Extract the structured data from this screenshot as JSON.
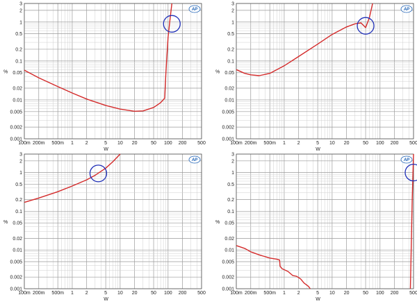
{
  "logo": {
    "text": "AP",
    "color": "#1a5fb4"
  },
  "style": {
    "line_color": "#d42a2a",
    "circle_color": "#1f2fb8",
    "grid_major": "#9a9a9a",
    "grid_minor": "#cfcfcf"
  },
  "chart_data": [
    {
      "type": "line",
      "scale": "log-log",
      "xlabel": "W",
      "ylabel": "%",
      "xlim": [
        0.1,
        500
      ],
      "ylim": [
        0.001,
        3
      ],
      "xticks": [
        {
          "v": 0.1,
          "label": "100m"
        },
        {
          "v": 0.2,
          "label": "200m"
        },
        {
          "v": 0.5,
          "label": "500m"
        },
        {
          "v": 1,
          "label": "1"
        },
        {
          "v": 2,
          "label": "2"
        },
        {
          "v": 5,
          "label": "5"
        },
        {
          "v": 10,
          "label": "10"
        },
        {
          "v": 20,
          "label": "20"
        },
        {
          "v": 50,
          "label": "50"
        },
        {
          "v": 100,
          "label": "100"
        },
        {
          "v": 200,
          "label": "200"
        },
        {
          "v": 500,
          "label": "500"
        }
      ],
      "yticks": [
        {
          "v": 0.001,
          "label": "0.001"
        },
        {
          "v": 0.002,
          "label": "0.002"
        },
        {
          "v": 0.005,
          "label": "0.005"
        },
        {
          "v": 0.01,
          "label": "0.01"
        },
        {
          "v": 0.02,
          "label": "0.02"
        },
        {
          "v": 0.05,
          "label": "0.05"
        },
        {
          "v": 0.1,
          "label": "0.1"
        },
        {
          "v": 0.2,
          "label": "0.2"
        },
        {
          "v": 0.5,
          "label": "0.5"
        },
        {
          "v": 1,
          "label": "1"
        },
        {
          "v": 2,
          "label": "2"
        },
        {
          "v": 3,
          "label": "3"
        }
      ],
      "series": [
        {
          "points": [
            [
              0.1,
              0.058
            ],
            [
              0.2,
              0.037
            ],
            [
              0.5,
              0.022
            ],
            [
              1,
              0.015
            ],
            [
              2,
              0.0105
            ],
            [
              5,
              0.0072
            ],
            [
              10,
              0.0058
            ],
            [
              20,
              0.0051
            ],
            [
              30,
              0.0052
            ],
            [
              50,
              0.0064
            ],
            [
              70,
              0.0085
            ],
            [
              85,
              0.011
            ],
            [
              90,
              0.05
            ],
            [
              100,
              0.4
            ],
            [
              110,
              1.2
            ],
            [
              120,
              3
            ]
          ]
        }
      ],
      "circle": {
        "x": 120,
        "y": 0.9
      }
    },
    {
      "type": "line",
      "scale": "log-log",
      "xlabel": "W",
      "ylabel": "%",
      "xlim": [
        0.1,
        500
      ],
      "ylim": [
        0.001,
        3
      ],
      "xticks": [
        {
          "v": 0.1,
          "label": "100m"
        },
        {
          "v": 0.2,
          "label": "200m"
        },
        {
          "v": 0.5,
          "label": "500m"
        },
        {
          "v": 1,
          "label": "1"
        },
        {
          "v": 2,
          "label": "2"
        },
        {
          "v": 5,
          "label": "5"
        },
        {
          "v": 10,
          "label": "10"
        },
        {
          "v": 20,
          "label": "20"
        },
        {
          "v": 50,
          "label": "50"
        },
        {
          "v": 100,
          "label": "100"
        },
        {
          "v": 200,
          "label": "200"
        },
        {
          "v": 500,
          "label": "500"
        }
      ],
      "yticks": [
        {
          "v": 0.001,
          "label": "0.001"
        },
        {
          "v": 0.002,
          "label": "0.002"
        },
        {
          "v": 0.005,
          "label": "0.005"
        },
        {
          "v": 0.01,
          "label": "0.01"
        },
        {
          "v": 0.02,
          "label": "0.02"
        },
        {
          "v": 0.05,
          "label": "0.05"
        },
        {
          "v": 0.1,
          "label": "0.1"
        },
        {
          "v": 0.2,
          "label": "0.2"
        },
        {
          "v": 0.5,
          "label": "0.5"
        },
        {
          "v": 1,
          "label": "1"
        },
        {
          "v": 2,
          "label": "2"
        },
        {
          "v": 3,
          "label": "3"
        }
      ],
      "series": [
        {
          "points": [
            [
              0.1,
              0.06
            ],
            [
              0.15,
              0.048
            ],
            [
              0.2,
              0.044
            ],
            [
              0.3,
              0.042
            ],
            [
              0.5,
              0.048
            ],
            [
              1,
              0.075
            ],
            [
              2,
              0.13
            ],
            [
              5,
              0.27
            ],
            [
              10,
              0.48
            ],
            [
              20,
              0.75
            ],
            [
              30,
              0.9
            ],
            [
              40,
              0.95
            ],
            [
              50,
              0.72
            ],
            [
              60,
              1.3
            ],
            [
              70,
              3
            ]
          ]
        }
      ],
      "circle": {
        "x": 50,
        "y": 0.8
      }
    },
    {
      "type": "line",
      "scale": "log-log",
      "xlabel": "W",
      "ylabel": "%",
      "xlim": [
        0.1,
        500
      ],
      "ylim": [
        0.001,
        3
      ],
      "xticks": [
        {
          "v": 0.1,
          "label": "100m"
        },
        {
          "v": 0.2,
          "label": "200m"
        },
        {
          "v": 0.5,
          "label": "500m"
        },
        {
          "v": 1,
          "label": "1"
        },
        {
          "v": 2,
          "label": "2"
        },
        {
          "v": 5,
          "label": "5"
        },
        {
          "v": 10,
          "label": "10"
        },
        {
          "v": 20,
          "label": "20"
        },
        {
          "v": 50,
          "label": "50"
        },
        {
          "v": 100,
          "label": "100"
        },
        {
          "v": 200,
          "label": "200"
        },
        {
          "v": 500,
          "label": "500"
        }
      ],
      "yticks": [
        {
          "v": 0.001,
          "label": "0.001"
        },
        {
          "v": 0.002,
          "label": "0.002"
        },
        {
          "v": 0.005,
          "label": "0.005"
        },
        {
          "v": 0.01,
          "label": "0.01"
        },
        {
          "v": 0.02,
          "label": "0.02"
        },
        {
          "v": 0.05,
          "label": "0.05"
        },
        {
          "v": 0.1,
          "label": "0.1"
        },
        {
          "v": 0.2,
          "label": "0.2"
        },
        {
          "v": 0.5,
          "label": "0.5"
        },
        {
          "v": 1,
          "label": "1"
        },
        {
          "v": 2,
          "label": "2"
        },
        {
          "v": 3,
          "label": "3"
        }
      ],
      "series": [
        {
          "points": [
            [
              0.1,
              0.17
            ],
            [
              0.2,
              0.22
            ],
            [
              0.5,
              0.32
            ],
            [
              1,
              0.45
            ],
            [
              2,
              0.65
            ],
            [
              3,
              0.85
            ],
            [
              5,
              1.3
            ],
            [
              7,
              1.9
            ],
            [
              10,
              3
            ]
          ]
        }
      ],
      "circle": {
        "x": 3.5,
        "y": 0.95
      }
    },
    {
      "type": "line",
      "scale": "log-log",
      "xlabel": "W",
      "ylabel": "%",
      "xlim": [
        0.1,
        500
      ],
      "ylim": [
        0.001,
        3
      ],
      "xticks": [
        {
          "v": 0.1,
          "label": "100m"
        },
        {
          "v": 0.2,
          "label": "200m"
        },
        {
          "v": 0.5,
          "label": "500m"
        },
        {
          "v": 1,
          "label": "1"
        },
        {
          "v": 2,
          "label": "2"
        },
        {
          "v": 5,
          "label": "5"
        },
        {
          "v": 10,
          "label": "10"
        },
        {
          "v": 20,
          "label": "20"
        },
        {
          "v": 50,
          "label": "50"
        },
        {
          "v": 100,
          "label": "100"
        },
        {
          "v": 200,
          "label": "200"
        },
        {
          "v": 500,
          "label": "500"
        }
      ],
      "yticks": [
        {
          "v": 0.001,
          "label": "0.001"
        },
        {
          "v": 0.002,
          "label": "0.002"
        },
        {
          "v": 0.005,
          "label": "0.005"
        },
        {
          "v": 0.01,
          "label": "0.01"
        },
        {
          "v": 0.02,
          "label": "0.02"
        },
        {
          "v": 0.05,
          "label": "0.05"
        },
        {
          "v": 0.1,
          "label": "0.1"
        },
        {
          "v": 0.2,
          "label": "0.2"
        },
        {
          "v": 0.5,
          "label": "0.5"
        },
        {
          "v": 1,
          "label": "1"
        },
        {
          "v": 2,
          "label": "2"
        },
        {
          "v": 3,
          "label": "3"
        }
      ],
      "series": [
        {
          "points": [
            [
              0.1,
              0.013
            ],
            [
              0.15,
              0.011
            ],
            [
              0.2,
              0.009
            ],
            [
              0.3,
              0.0075
            ],
            [
              0.5,
              0.0062
            ],
            [
              0.7,
              0.0058
            ],
            [
              0.8,
              0.0055
            ],
            [
              0.82,
              0.0038
            ],
            [
              0.9,
              0.0033
            ],
            [
              1.2,
              0.0028
            ],
            [
              1.5,
              0.0022
            ],
            [
              1.8,
              0.0021
            ],
            [
              2.2,
              0.0018
            ],
            [
              2.6,
              0.0014
            ],
            [
              3.2,
              0.00115
            ],
            [
              3.5,
              0.001
            ]
          ]
        },
        {
          "points": [
            [
              430,
              0.001
            ],
            [
              470,
              0.2
            ],
            [
              500,
              3
            ]
          ]
        }
      ],
      "circle": {
        "x": 500,
        "y": 1.0
      }
    }
  ]
}
